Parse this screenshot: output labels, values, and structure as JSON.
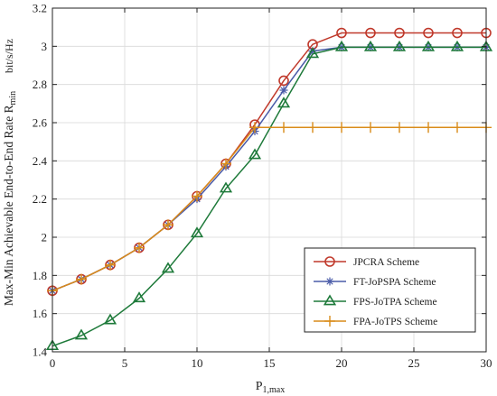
{
  "chart_data": {
    "type": "line",
    "xlabel": "P",
    "xlabel_sub": "1,max",
    "ylabel": "Max-Min Achievable End-to-End Rate R",
    "ylabel_sub": "min",
    "ylabel_unit": "bit/s/Hz",
    "xlim": [
      0,
      30
    ],
    "ylim": [
      1.4,
      3.2
    ],
    "xticks": [
      0,
      5,
      10,
      15,
      20,
      25,
      30
    ],
    "yticks": [
      1.4,
      1.6,
      1.8,
      2,
      2.2,
      2.4,
      2.6,
      2.8,
      3,
      3.2
    ],
    "grid": true,
    "legend_position": "bottom-right",
    "series": [
      {
        "name": "JPCRA Scheme",
        "color": "#c0392b",
        "marker": "circle",
        "x": [
          0,
          2,
          4,
          6,
          8,
          10,
          12,
          14,
          16,
          18,
          20,
          22,
          24,
          26,
          28,
          30
        ],
        "y": [
          1.72,
          1.78,
          1.855,
          1.945,
          2.065,
          2.215,
          2.385,
          2.59,
          2.82,
          3.01,
          3.07,
          3.07,
          3.07,
          3.07,
          3.07,
          3.07
        ]
      },
      {
        "name": "FT-JoPSPA Scheme",
        "color": "#4a5ba8",
        "marker": "star",
        "x": [
          0,
          2,
          4,
          6,
          8,
          10,
          12,
          14,
          16,
          18,
          20,
          22,
          24,
          26,
          28,
          30
        ],
        "y": [
          1.72,
          1.78,
          1.855,
          1.945,
          2.065,
          2.2,
          2.37,
          2.555,
          2.77,
          2.975,
          2.995,
          2.995,
          2.995,
          2.995,
          2.995,
          2.995
        ]
      },
      {
        "name": "FPS-JoTPA Scheme",
        "color": "#1e7a3a",
        "marker": "triangle",
        "x": [
          0,
          2,
          4,
          6,
          8,
          10,
          12,
          14,
          16,
          18,
          20,
          22,
          24,
          26,
          28,
          30
        ],
        "y": [
          1.43,
          1.485,
          1.565,
          1.68,
          1.835,
          2.02,
          2.255,
          2.43,
          2.7,
          2.96,
          2.995,
          2.995,
          2.995,
          2.995,
          2.995,
          2.995
        ]
      },
      {
        "name": "FPA-JoTPS Scheme",
        "color": "#d98c1a",
        "marker": "plus",
        "x": [
          0,
          2,
          4,
          6,
          8,
          10,
          12,
          14,
          16,
          18,
          20,
          22,
          24,
          26,
          28,
          30
        ],
        "y": [
          1.72,
          1.78,
          1.855,
          1.945,
          2.065,
          2.215,
          2.385,
          2.575,
          2.575,
          2.575,
          2.575,
          2.575,
          2.575,
          2.575,
          2.575,
          2.575
        ]
      }
    ]
  }
}
